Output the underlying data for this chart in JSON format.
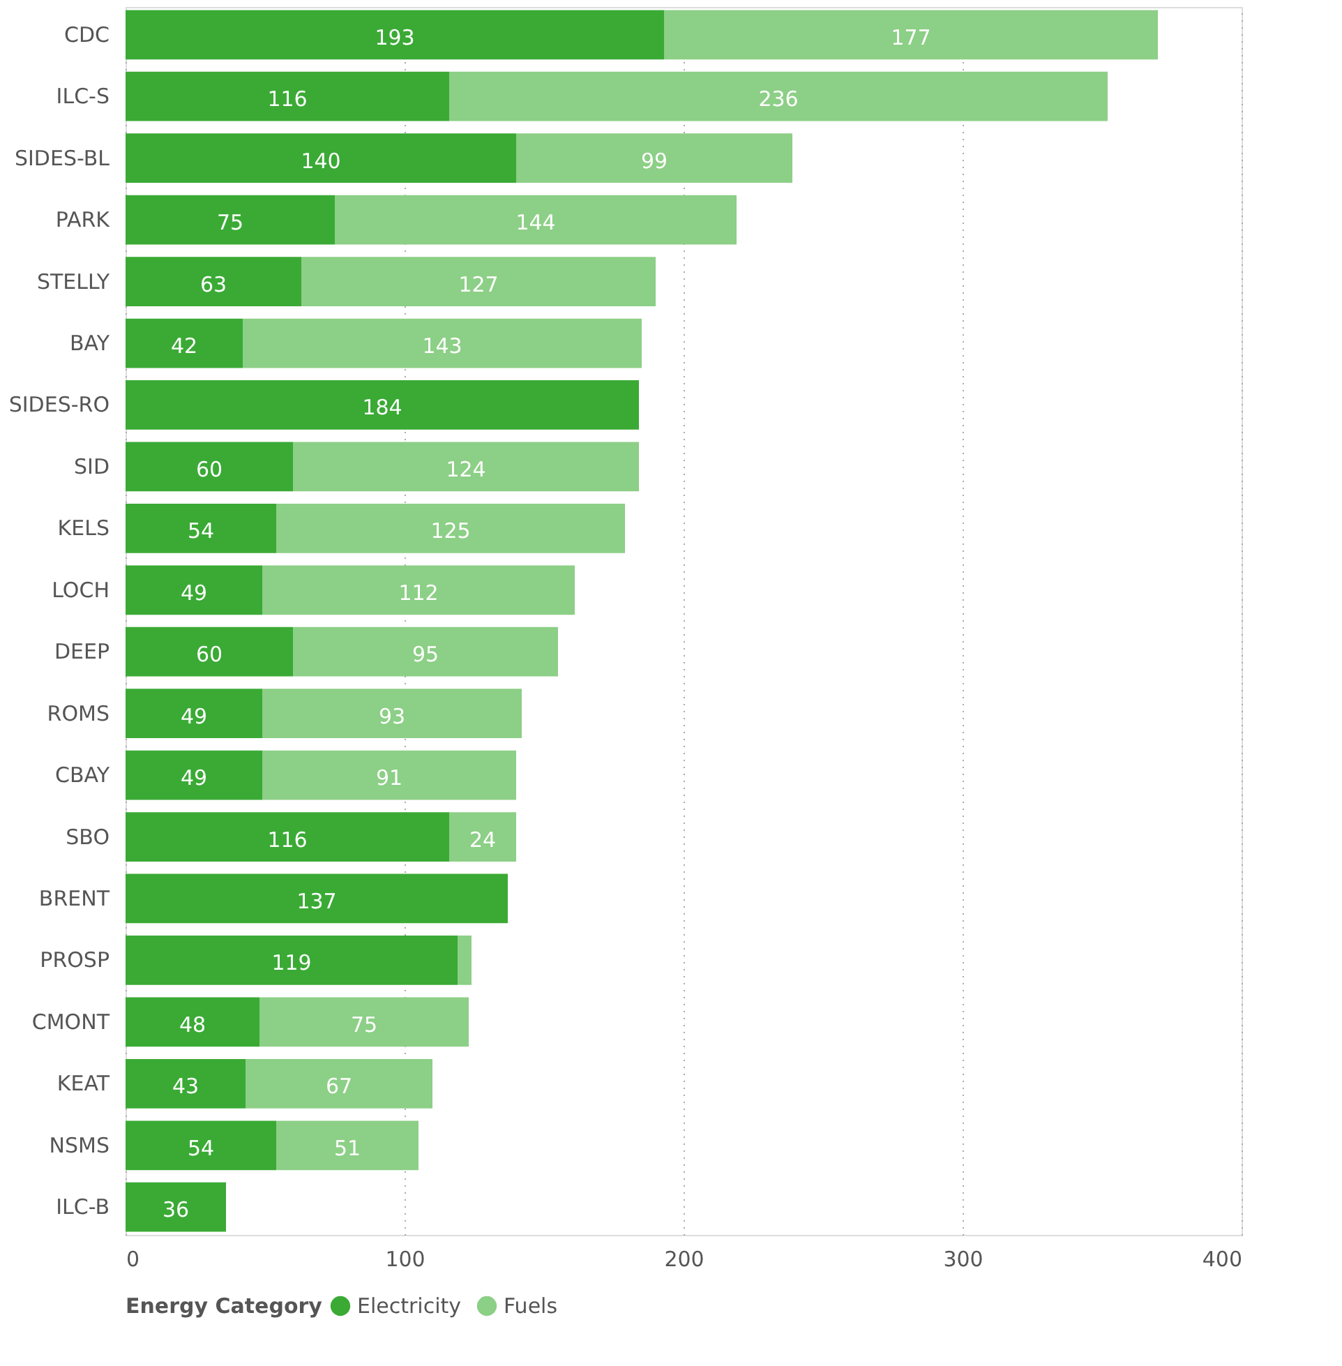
{
  "chart_data": {
    "type": "bar",
    "orientation": "horizontal",
    "stacked": true,
    "categories": [
      "CDC",
      "ILC-S",
      "SIDES-BL",
      "PARK",
      "STELLY",
      "BAY",
      "SIDES-RO",
      "SID",
      "KELS",
      "LOCH",
      "DEEP",
      "ROMS",
      "CBAY",
      "SBO",
      "BRENT",
      "PROSP",
      "CMONT",
      "KEAT",
      "NSMS",
      "ILC-B"
    ],
    "series": [
      {
        "name": "Electricity",
        "color": "#3aaa35",
        "values": [
          193,
          116,
          140,
          75,
          63,
          42,
          184,
          60,
          54,
          49,
          60,
          49,
          49,
          116,
          137,
          119,
          48,
          43,
          54,
          36
        ],
        "value_labels": [
          "193",
          "116",
          "140",
          "75",
          "63",
          "42",
          "184",
          "60",
          "54",
          "49",
          "60",
          "49",
          "49",
          "116",
          "137",
          "119",
          "48",
          "43",
          "54",
          "36"
        ]
      },
      {
        "name": "Fuels",
        "color": "#8ccf86",
        "values": [
          177,
          236,
          99,
          144,
          127,
          143,
          null,
          124,
          125,
          112,
          95,
          93,
          91,
          24,
          null,
          5,
          75,
          67,
          51,
          null
        ],
        "value_labels": [
          "177",
          "236",
          "99",
          "144",
          "127",
          "143",
          null,
          "124",
          "125",
          "112",
          "95",
          "93",
          "91",
          "24",
          null,
          null,
          "75",
          "67",
          "51",
          null
        ]
      }
    ],
    "xlim": [
      0,
      400
    ],
    "xticks": [
      0,
      100,
      200,
      300,
      400
    ],
    "grid": "x",
    "legend": "bottom",
    "legend_title": "Energy Category"
  }
}
